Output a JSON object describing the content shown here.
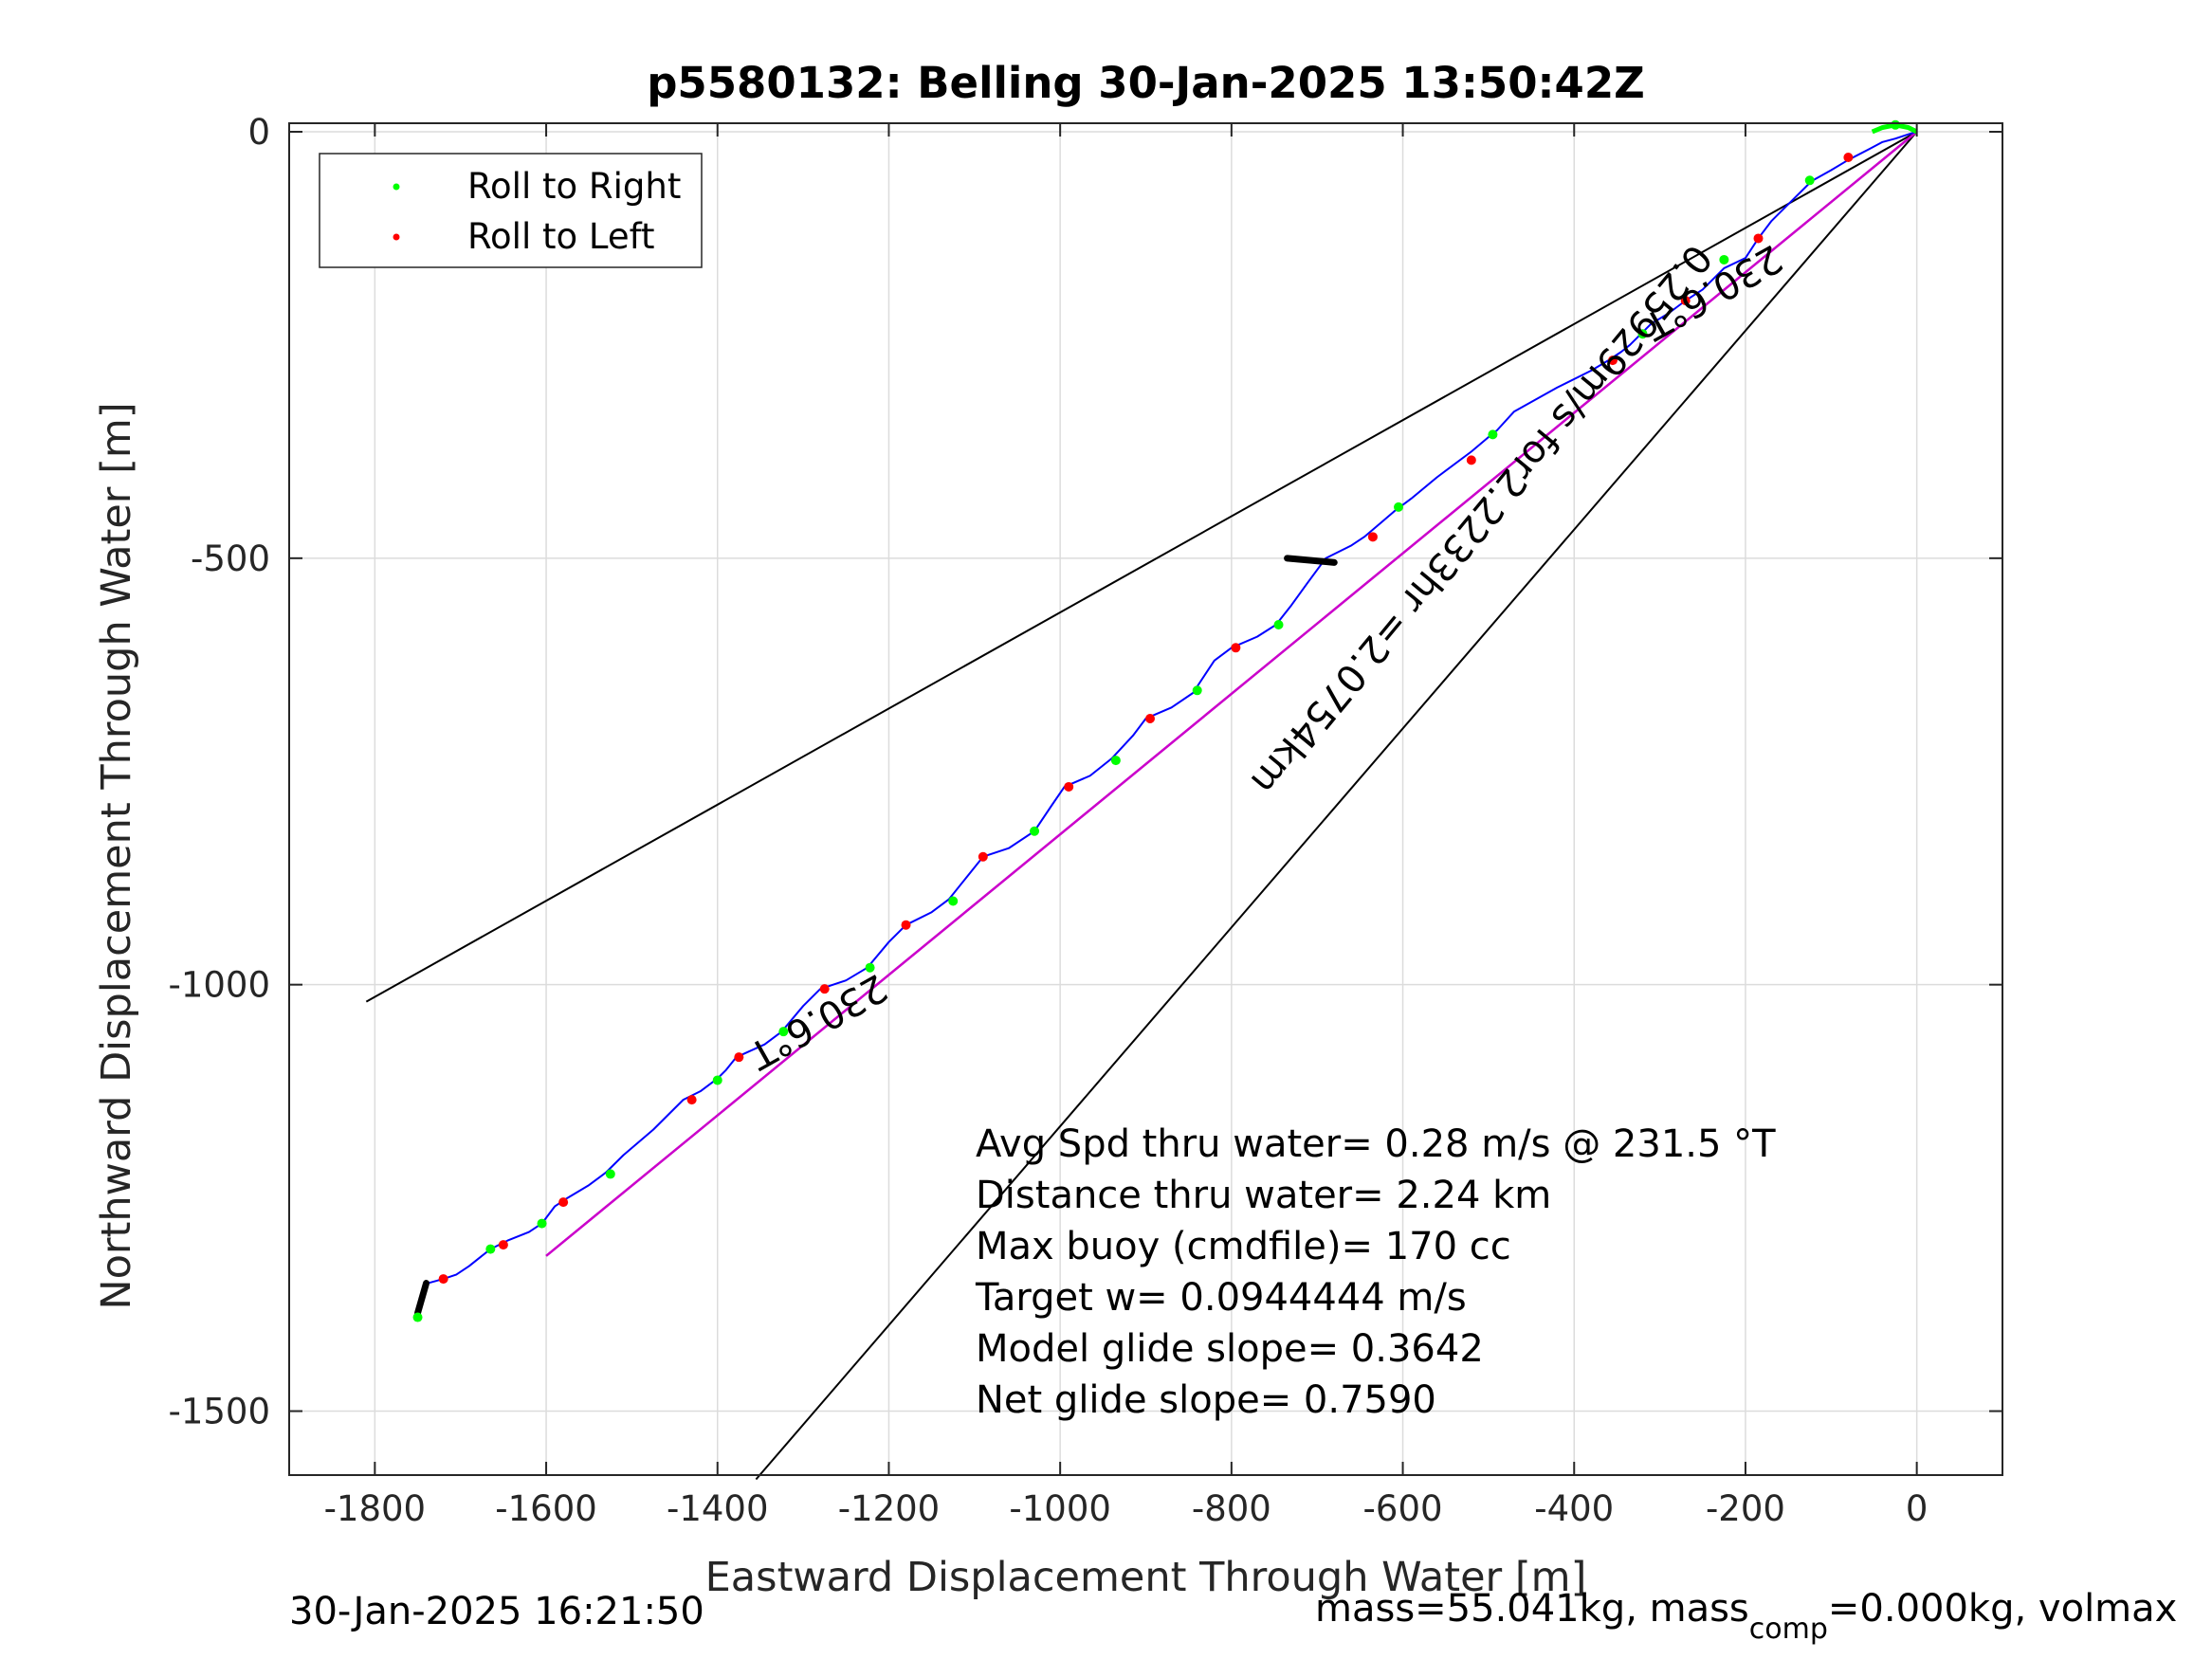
{
  "chart_data": {
    "type": "line",
    "title": "p5580132: Belling 30-Jan-2025 13:50:42Z",
    "xlabel": "Eastward Displacement Through Water [m]",
    "ylabel": "Northward Displacement Through Water [m]",
    "xlim": [
      -1900,
      100
    ],
    "ylim": [
      -1575,
      10
    ],
    "xticks": [
      -1800,
      -1600,
      -1400,
      -1200,
      -1000,
      -800,
      -600,
      -400,
      -200,
      0
    ],
    "yticks": [
      0,
      -500,
      -1000,
      -1500
    ],
    "xtick_labels": [
      "-1800",
      "-1600",
      "-1400",
      "-1200",
      "-1000",
      "-800",
      "-600",
      "-400",
      "-200",
      "0"
    ],
    "ytick_labels": [
      "0",
      "-500",
      "-1000",
      "-1500"
    ],
    "grid": true,
    "legend_placement": "top-left",
    "legend": [
      {
        "label": "Roll to Right",
        "color": "#00ff00"
      },
      {
        "label": "Roll to Left",
        "color": "#ff0000"
      }
    ],
    "track": {
      "color": "#0000ff",
      "points": [
        [
          0,
          0
        ],
        [
          -10,
          -3
        ],
        [
          -25,
          -8
        ],
        [
          -40,
          -12
        ],
        [
          -55,
          -20
        ],
        [
          -80,
          -33
        ],
        [
          -100,
          -45
        ],
        [
          -123,
          -58
        ],
        [
          -145,
          -80
        ],
        [
          -170,
          -105
        ],
        [
          -185,
          -125
        ],
        [
          -200,
          -148
        ],
        [
          -225,
          -160
        ],
        [
          -250,
          -185
        ],
        [
          -270,
          -198
        ],
        [
          -290,
          -213
        ],
        [
          -310,
          -225
        ],
        [
          -325,
          -240
        ],
        [
          -335,
          -250
        ],
        [
          -345,
          -258
        ],
        [
          -360,
          -268
        ],
        [
          -380,
          -280
        ],
        [
          -420,
          -300
        ],
        [
          -470,
          -328
        ],
        [
          -490,
          -350
        ],
        [
          -500,
          -358
        ],
        [
          -520,
          -375
        ],
        [
          -560,
          -405
        ],
        [
          -590,
          -430
        ],
        [
          -610,
          -445
        ],
        [
          -625,
          -458
        ],
        [
          -645,
          -475
        ],
        [
          -660,
          -485
        ],
        [
          -690,
          -500
        ],
        [
          -712,
          -530
        ],
        [
          -730,
          -555
        ],
        [
          -748,
          -578
        ],
        [
          -770,
          -592
        ],
        [
          -800,
          -605
        ],
        [
          -820,
          -620
        ],
        [
          -845,
          -658
        ],
        [
          -870,
          -675
        ],
        [
          -900,
          -688
        ],
        [
          -915,
          -708
        ],
        [
          -940,
          -735
        ],
        [
          -965,
          -755
        ],
        [
          -995,
          -768
        ],
        [
          -1010,
          -790
        ],
        [
          -1030,
          -820
        ],
        [
          -1060,
          -840
        ],
        [
          -1090,
          -850
        ],
        [
          -1110,
          -875
        ],
        [
          -1130,
          -900
        ],
        [
          -1150,
          -915
        ],
        [
          -1180,
          -930
        ],
        [
          -1200,
          -950
        ],
        [
          -1225,
          -980
        ],
        [
          -1250,
          -995
        ],
        [
          -1280,
          -1005
        ],
        [
          -1300,
          -1025
        ],
        [
          -1325,
          -1055
        ],
        [
          -1345,
          -1070
        ],
        [
          -1378,
          -1085
        ],
        [
          -1390,
          -1100
        ],
        [
          -1400,
          -1110
        ],
        [
          -1420,
          -1125
        ],
        [
          -1440,
          -1135
        ],
        [
          -1475,
          -1170
        ],
        [
          -1510,
          -1200
        ],
        [
          -1530,
          -1220
        ],
        [
          -1550,
          -1235
        ],
        [
          -1575,
          -1250
        ],
        [
          -1590,
          -1260
        ],
        [
          -1605,
          -1280
        ],
        [
          -1620,
          -1290
        ],
        [
          -1645,
          -1300
        ],
        [
          -1665,
          -1310
        ],
        [
          -1690,
          -1330
        ],
        [
          -1705,
          -1340
        ],
        [
          -1720,
          -1345
        ],
        [
          -1738,
          -1350
        ],
        [
          -1745,
          -1365
        ],
        [
          -1748,
          -1375
        ],
        [
          -1750,
          -1390
        ]
      ]
    },
    "roll_to_right": [
      [
        -25,
        8
      ],
      [
        -125,
        -57
      ],
      [
        -225,
        -150
      ],
      [
        -320,
        -237
      ],
      [
        -495,
        -355
      ],
      [
        -605,
        -440
      ],
      [
        -745,
        -578
      ],
      [
        -840,
        -655
      ],
      [
        -935,
        -737
      ],
      [
        -1030,
        -820
      ],
      [
        -1125,
        -902
      ],
      [
        -1222,
        -980
      ],
      [
        -1323,
        -1055
      ],
      [
        -1400,
        -1112
      ],
      [
        -1525,
        -1222
      ],
      [
        -1605,
        -1280
      ],
      [
        -1665,
        -1310
      ],
      [
        -1750,
        -1390
      ]
    ],
    "roll_to_left": [
      [
        -80,
        -30
      ],
      [
        -185,
        -125
      ],
      [
        -270,
        -198
      ],
      [
        -355,
        -268
      ],
      [
        -520,
        -385
      ],
      [
        -635,
        -475
      ],
      [
        -795,
        -605
      ],
      [
        -895,
        -688
      ],
      [
        -990,
        -768
      ],
      [
        -1090,
        -850
      ],
      [
        -1180,
        -930
      ],
      [
        -1275,
        -1005
      ],
      [
        -1375,
        -1085
      ],
      [
        -1430,
        -1135
      ],
      [
        -1580,
        -1255
      ],
      [
        -1650,
        -1305
      ],
      [
        -1720,
        -1345
      ]
    ],
    "black_segments": [
      [
        [
          -735,
          -500
        ],
        [
          -680,
          -505
        ]
      ],
      [
        [
          -1740,
          -1350
        ],
        [
          -1750,
          -1385
        ]
      ]
    ],
    "dive_top_arc": {
      "color": "#00ff00",
      "points": [
        [
          0,
          0
        ],
        [
          -10,
          5
        ],
        [
          -25,
          8
        ],
        [
          -40,
          5
        ],
        [
          -52,
          0
        ]
      ]
    },
    "lines": [
      {
        "name": "",
        "color": "#000000",
        "points": [
          [
            0,
            0
          ],
          [
            -1810,
            -1020
          ]
        ]
      },
      {
        "name": "",
        "color": "#000000",
        "points": [
          [
            0,
            0
          ],
          [
            -1600,
            -1318
          ]
        ]
      },
      {
        "name": "",
        "color": "#000000",
        "points": [
          [
            0,
            0
          ],
          [
            -1355,
            -1580
          ]
        ]
      },
      {
        "name": "",
        "color": "#cc00cc",
        "points": [
          [
            0,
            0
          ],
          [
            -1600,
            -1318
          ]
        ]
      }
    ],
    "labels": [
      {
        "text": "230.6°T",
        "x": -1290,
        "y": -1030,
        "rotation": 150.6
      },
      {
        "text": "230.6°T",
        "x": -245,
        "y": -175,
        "rotation": 150.6
      },
      {
        "text": "0.25929m/s for2.2233hr =2.0754km",
        "x": -520,
        "y": -445,
        "rotation": 129.5
      }
    ],
    "annotation_lines": [
      "Avg Spd thru water=  0.28 m/s @ 231.5 °T",
      "Distance thru water=  2.24 km",
      "Max buoy (cmdfile)= 170 cc",
      "Target w= 0.0944444 m/s",
      "Model glide slope= 0.3642",
      "Net glide slope= 0.7590"
    ]
  },
  "footer": {
    "timestamp": "30-Jan-2025 16:21:50",
    "mass_main": "mass=55.041kg, mass",
    "mass_sub": "comp",
    "mass_rest": "=0.000kg, volmax"
  }
}
